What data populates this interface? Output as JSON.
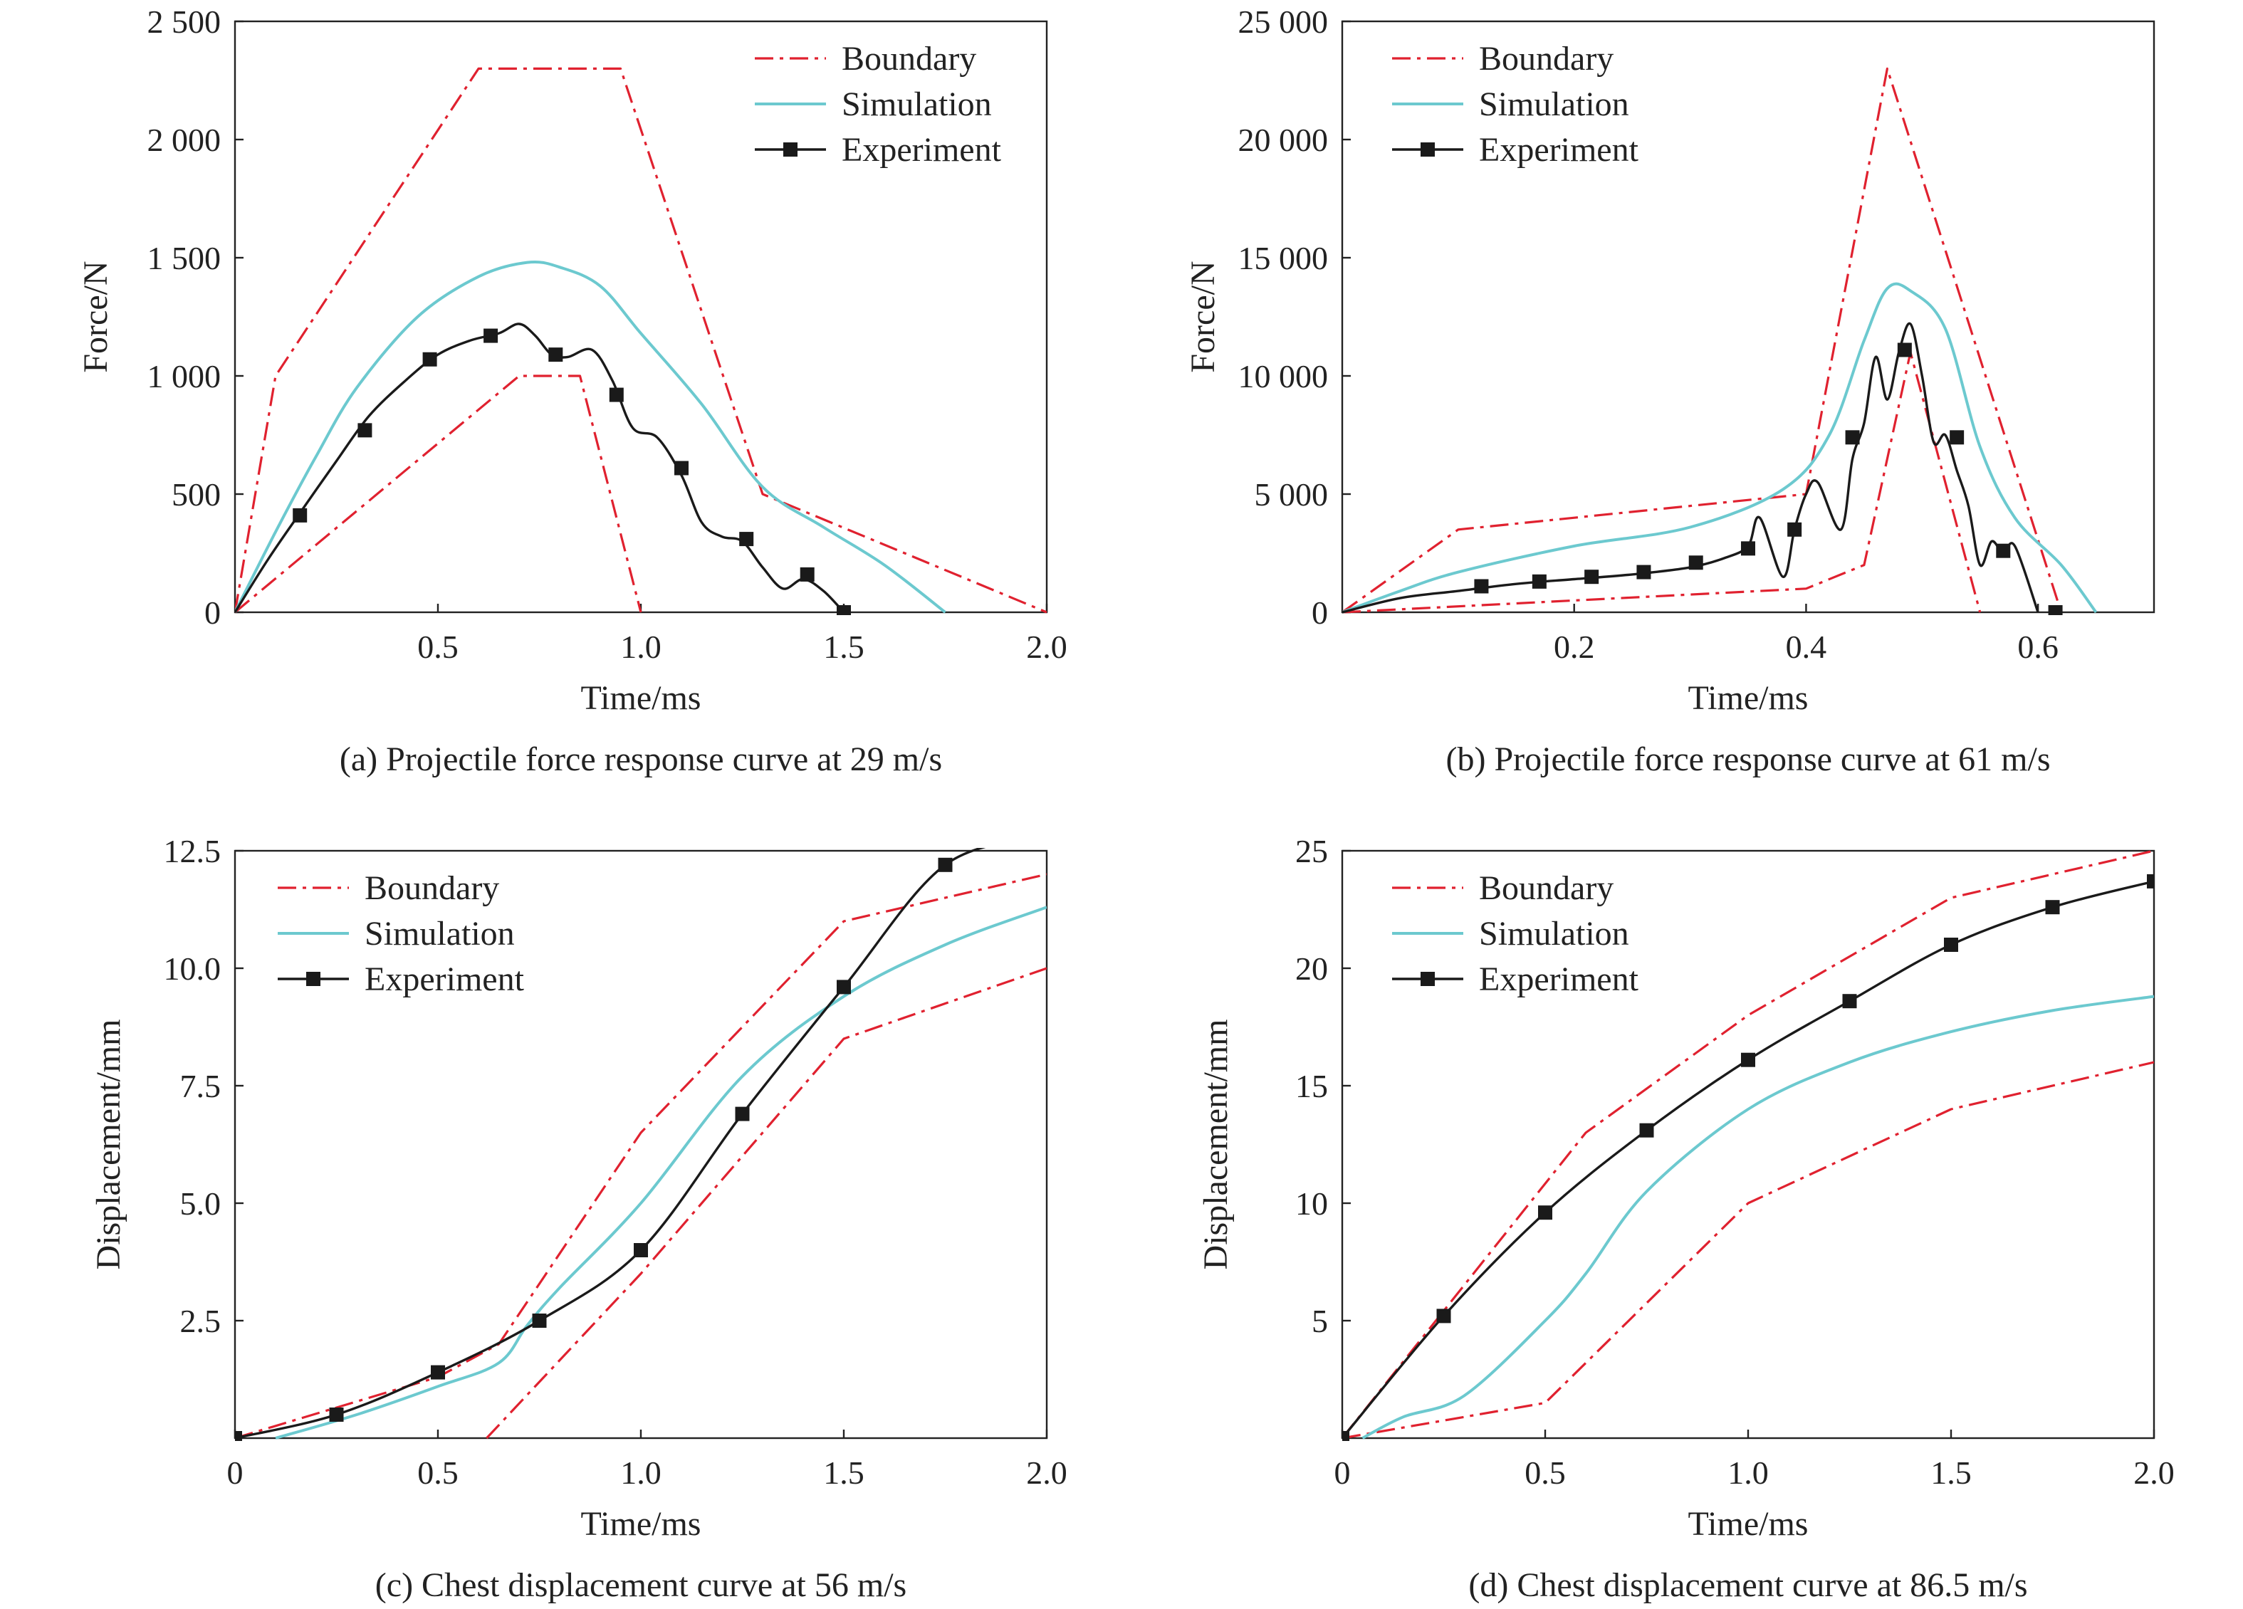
{
  "colors": {
    "boundary": "#e0212f",
    "simulation": "#6cc9cf",
    "experiment": "#1a1a1a",
    "axes": "#222222"
  },
  "chart_data": [
    {
      "id": "a",
      "type": "line",
      "caption": "(a) Projectile force response curve at 29 m/s",
      "xlabel": "Time/ms",
      "ylabel": "Force/N",
      "xlim": [
        0,
        2.0
      ],
      "ylim": [
        0,
        2500
      ],
      "xticks": [
        0.5,
        1.0,
        1.5,
        2.0
      ],
      "xtick_labels": [
        "0.5",
        "1.0",
        "1.5",
        "2.0"
      ],
      "yticks": [
        0,
        500,
        1000,
        1500,
        2000,
        2500
      ],
      "ytick_labels": [
        "0",
        "500",
        "1 000",
        "1 500",
        "2 000",
        "2 500"
      ],
      "legend_position": "top-right",
      "series": [
        {
          "name": "Boundary",
          "style": "dashdot",
          "x": [
            0,
            0.1,
            0.6,
            0.95,
            1.3,
            2.0
          ],
          "y": [
            0,
            1000,
            2300,
            2300,
            500,
            0
          ]
        },
        {
          "name": "Boundary",
          "style": "dashdot",
          "show_in_legend": false,
          "x": [
            0,
            0.7,
            0.85,
            1.0
          ],
          "y": [
            0,
            1000,
            1000,
            0
          ]
        },
        {
          "name": "Simulation",
          "style": "solid",
          "x": [
            0,
            0.1,
            0.2,
            0.3,
            0.45,
            0.6,
            0.72,
            0.8,
            0.9,
            1.0,
            1.15,
            1.3,
            1.45,
            1.6,
            1.75
          ],
          "y": [
            0,
            340,
            660,
            950,
            1250,
            1420,
            1480,
            1460,
            1380,
            1180,
            880,
            530,
            360,
            200,
            0
          ]
        },
        {
          "name": "Experiment",
          "style": "line-square",
          "x": [
            0,
            0.08,
            0.16,
            0.25,
            0.33,
            0.42,
            0.5,
            0.58,
            0.65,
            0.7,
            0.74,
            0.78,
            0.82,
            0.88,
            0.93,
            0.98,
            1.04,
            1.1,
            1.15,
            1.2,
            1.25,
            1.3,
            1.35,
            1.4,
            1.45,
            1.5
          ],
          "y": [
            0,
            220,
            420,
            640,
            830,
            980,
            1090,
            1150,
            1180,
            1220,
            1170,
            1090,
            1080,
            1110,
            980,
            780,
            740,
            580,
            380,
            320,
            300,
            190,
            100,
            140,
            90,
            0
          ],
          "marker_x": [
            0.16,
            0.32,
            0.48,
            0.63,
            0.79,
            0.94,
            1.1,
            1.26,
            1.41,
            1.5
          ],
          "marker_y": [
            410,
            770,
            1070,
            1170,
            1090,
            920,
            610,
            310,
            160,
            0
          ]
        }
      ]
    },
    {
      "id": "b",
      "type": "line",
      "caption": "(b) Projectile force response curve at 61 m/s",
      "xlabel": "Time/ms",
      "ylabel": "Force/N",
      "xlim": [
        0,
        0.7
      ],
      "ylim": [
        0,
        25000
      ],
      "xticks": [
        0.2,
        0.4,
        0.6
      ],
      "xtick_labels": [
        "0.2",
        "0.4",
        "0.6"
      ],
      "yticks": [
        0,
        5000,
        10000,
        15000,
        20000,
        25000
      ],
      "ytick_labels": [
        "0",
        "5 000",
        "10 000",
        "15 000",
        "20 000",
        "25 000"
      ],
      "legend_position": "top-left",
      "series": [
        {
          "name": "Boundary",
          "style": "dashdot",
          "x": [
            0,
            0.1,
            0.4,
            0.47,
            0.62
          ],
          "y": [
            0,
            3500,
            5000,
            23000,
            0
          ]
        },
        {
          "name": "Boundary",
          "style": "dashdot",
          "show_in_legend": false,
          "x": [
            0,
            0.4,
            0.45,
            0.49,
            0.55
          ],
          "y": [
            0,
            1000,
            2000,
            11000,
            0
          ]
        },
        {
          "name": "Simulation",
          "style": "solid",
          "x": [
            0,
            0.05,
            0.1,
            0.2,
            0.3,
            0.38,
            0.42,
            0.45,
            0.47,
            0.49,
            0.52,
            0.55,
            0.58,
            0.62,
            0.65
          ],
          "y": [
            0,
            900,
            1700,
            2800,
            3600,
            5200,
            7500,
            11500,
            13700,
            13600,
            12000,
            7000,
            4000,
            2000,
            0
          ]
        },
        {
          "name": "Experiment",
          "style": "line-square",
          "x": [
            0,
            0.05,
            0.1,
            0.15,
            0.2,
            0.25,
            0.3,
            0.33,
            0.35,
            0.36,
            0.38,
            0.39,
            0.4,
            0.41,
            0.43,
            0.44,
            0.45,
            0.46,
            0.47,
            0.48,
            0.49,
            0.5,
            0.51,
            0.52,
            0.53,
            0.54,
            0.55,
            0.56,
            0.57,
            0.58,
            0.6
          ],
          "y": [
            0,
            600,
            900,
            1200,
            1400,
            1600,
            1900,
            2300,
            2800,
            4000,
            1500,
            3500,
            5000,
            5500,
            3500,
            6500,
            8000,
            10800,
            9000,
            11000,
            12200,
            10000,
            7200,
            7500,
            6000,
            4500,
            2000,
            3000,
            2500,
            2800,
            0
          ],
          "marker_x": [
            0.12,
            0.17,
            0.215,
            0.26,
            0.305,
            0.35,
            0.39,
            0.44,
            0.485,
            0.53,
            0.57,
            0.615
          ],
          "marker_y": [
            1100,
            1300,
            1500,
            1700,
            2100,
            2700,
            3500,
            7400,
            11100,
            7400,
            2600,
            0
          ]
        }
      ]
    },
    {
      "id": "c",
      "type": "line",
      "caption": "(c) Chest displacement curve at 56 m/s",
      "xlabel": "Time/ms",
      "ylabel": "Displacement/mm",
      "xlim": [
        0,
        2.0
      ],
      "ylim": [
        0,
        12.5
      ],
      "xticks": [
        0,
        0.5,
        1.0,
        1.5,
        2.0
      ],
      "xtick_labels": [
        "0",
        "0.5",
        "1.0",
        "1.5",
        "2.0"
      ],
      "yticks": [
        2.5,
        5.0,
        7.5,
        10.0,
        12.5
      ],
      "ytick_labels": [
        "2.5",
        "5.0",
        "7.5",
        "10.0",
        "12.5"
      ],
      "legend_position": "top-left",
      "series": [
        {
          "name": "Boundary",
          "style": "dashdot",
          "x": [
            0,
            0.5,
            0.65,
            1.0,
            1.5,
            2.0
          ],
          "y": [
            0,
            1.3,
            2.0,
            6.5,
            11.0,
            12.0
          ]
        },
        {
          "name": "Boundary",
          "style": "dashdot",
          "show_in_legend": false,
          "x": [
            0.62,
            1.0,
            1.5,
            2.0
          ],
          "y": [
            0,
            3.5,
            8.5,
            10.0
          ]
        },
        {
          "name": "Simulation",
          "style": "solid",
          "x": [
            0.1,
            0.3,
            0.5,
            0.65,
            0.72,
            0.8,
            1.0,
            1.25,
            1.5,
            1.75,
            2.0
          ],
          "y": [
            0,
            0.5,
            1.1,
            1.6,
            2.4,
            3.2,
            5.0,
            7.7,
            9.4,
            10.5,
            11.3
          ]
        },
        {
          "name": "Experiment",
          "style": "line-square",
          "x": [
            0,
            0.25,
            0.5,
            0.75,
            1.0,
            1.25,
            1.5,
            1.75,
            2.0
          ],
          "y": [
            0,
            0.5,
            1.4,
            2.5,
            4.0,
            6.9,
            9.6,
            12.2,
            12.8
          ],
          "marker_x": [
            0,
            0.25,
            0.5,
            0.75,
            1.0,
            1.25,
            1.5,
            1.75,
            2.0
          ],
          "marker_y": [
            0,
            0.5,
            1.4,
            2.5,
            4.0,
            6.9,
            9.6,
            12.2,
            12.8
          ]
        }
      ]
    },
    {
      "id": "d",
      "type": "line",
      "caption": "(d) Chest displacement curve at 86.5 m/s",
      "xlabel": "Time/ms",
      "ylabel": "Displacement/mm",
      "xlim": [
        0,
        2.0
      ],
      "ylim": [
        0,
        25
      ],
      "xticks": [
        0,
        0.5,
        1.0,
        1.5,
        2.0
      ],
      "xtick_labels": [
        "0",
        "0.5",
        "1.0",
        "1.5",
        "2.0"
      ],
      "yticks": [
        5,
        10,
        15,
        20,
        25
      ],
      "ytick_labels": [
        "5",
        "10",
        "15",
        "20",
        "25"
      ],
      "legend_position": "top-left",
      "series": [
        {
          "name": "Boundary",
          "style": "dashdot",
          "x": [
            0,
            0.3,
            0.6,
            1.0,
            1.5,
            2.0
          ],
          "y": [
            0,
            6.5,
            13.0,
            18.0,
            23.0,
            25.0
          ]
        },
        {
          "name": "Boundary",
          "style": "dashdot",
          "show_in_legend": false,
          "x": [
            0,
            0.5,
            1.0,
            1.5,
            2.0
          ],
          "y": [
            0,
            1.5,
            10.0,
            14.0,
            16.0
          ]
        },
        {
          "name": "Simulation",
          "style": "solid",
          "x": [
            0.05,
            0.15,
            0.3,
            0.5,
            0.6,
            0.75,
            1.0,
            1.25,
            1.5,
            1.75,
            2.0
          ],
          "y": [
            0,
            0.9,
            1.8,
            5.0,
            7.0,
            10.5,
            14.0,
            16.0,
            17.3,
            18.2,
            18.8
          ]
        },
        {
          "name": "Experiment",
          "style": "line-square",
          "x": [
            0,
            0.25,
            0.5,
            0.75,
            1.0,
            1.25,
            1.5,
            1.75,
            2.0
          ],
          "y": [
            0,
            5.2,
            9.6,
            13.1,
            16.1,
            18.6,
            21.0,
            22.6,
            23.7
          ],
          "marker_x": [
            0,
            0.25,
            0.5,
            0.75,
            1.0,
            1.25,
            1.5,
            1.75,
            2.0
          ],
          "marker_y": [
            0,
            5.2,
            9.6,
            13.1,
            16.1,
            18.6,
            21.0,
            22.6,
            23.7
          ]
        }
      ]
    }
  ]
}
